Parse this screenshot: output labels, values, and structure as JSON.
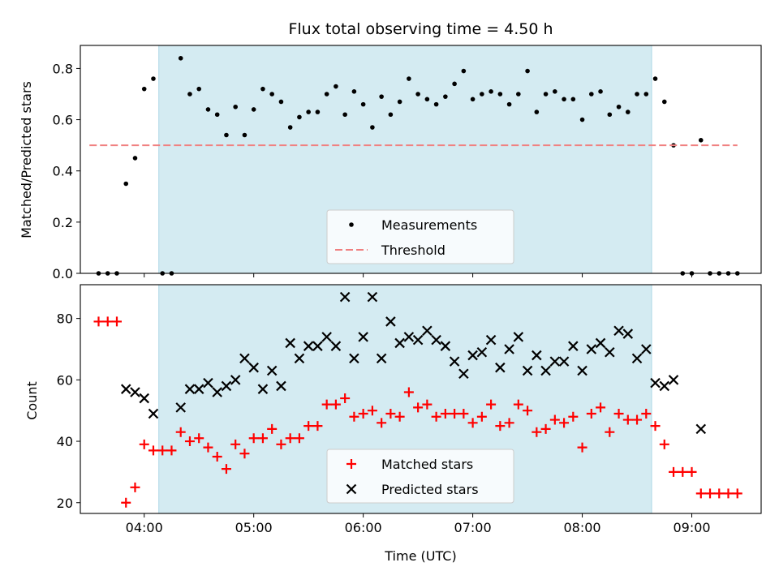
{
  "chart_data": {
    "title": "Flux total observing time = 4.50 h",
    "xlabel": "Time (UTC)",
    "x_ticks": [
      "04:00",
      "05:00",
      "06:00",
      "07:00",
      "08:00",
      "09:00"
    ],
    "x_range": [
      "03:25",
      "09:38"
    ],
    "shaded_interval": {
      "start": "04:08",
      "end": "08:38",
      "color": "#add8e6"
    },
    "panels": [
      {
        "type": "scatter",
        "ylabel": "Matched/Predicted stars",
        "ylim": [
          0,
          0.89
        ],
        "y_ticks": [
          "0.0",
          "0.2",
          "0.4",
          "0.6",
          "0.8"
        ],
        "y_tick_values": [
          0,
          0.2,
          0.4,
          0.6,
          0.8
        ],
        "legend": {
          "placement": "lower center"
        },
        "series": [
          {
            "name": "Measurements",
            "marker": "dot",
            "color": "#000000",
            "points": [
              [
                "03:35",
                0.0
              ],
              [
                "03:40",
                0.0
              ],
              [
                "03:45",
                0.0
              ],
              [
                "03:50",
                0.35
              ],
              [
                "03:55",
                0.45
              ],
              [
                "04:00",
                0.72
              ],
              [
                "04:05",
                0.76
              ],
              [
                "04:10",
                0.0
              ],
              [
                "04:15",
                0.0
              ],
              [
                "04:20",
                0.84
              ],
              [
                "04:25",
                0.7
              ],
              [
                "04:30",
                0.72
              ],
              [
                "04:35",
                0.64
              ],
              [
                "04:40",
                0.62
              ],
              [
                "04:45",
                0.54
              ],
              [
                "04:50",
                0.65
              ],
              [
                "04:55",
                0.54
              ],
              [
                "05:00",
                0.64
              ],
              [
                "05:05",
                0.72
              ],
              [
                "05:10",
                0.7
              ],
              [
                "05:15",
                0.67
              ],
              [
                "05:20",
                0.57
              ],
              [
                "05:25",
                0.61
              ],
              [
                "05:30",
                0.63
              ],
              [
                "05:35",
                0.63
              ],
              [
                "05:40",
                0.7
              ],
              [
                "05:45",
                0.73
              ],
              [
                "05:50",
                0.62
              ],
              [
                "05:55",
                0.71
              ],
              [
                "06:00",
                0.66
              ],
              [
                "06:05",
                0.57
              ],
              [
                "06:10",
                0.69
              ],
              [
                "06:15",
                0.62
              ],
              [
                "06:20",
                0.67
              ],
              [
                "06:25",
                0.76
              ],
              [
                "06:30",
                0.7
              ],
              [
                "06:35",
                0.68
              ],
              [
                "06:40",
                0.66
              ],
              [
                "06:45",
                0.69
              ],
              [
                "06:50",
                0.74
              ],
              [
                "06:55",
                0.79
              ],
              [
                "07:00",
                0.68
              ],
              [
                "07:05",
                0.7
              ],
              [
                "07:10",
                0.71
              ],
              [
                "07:15",
                0.7
              ],
              [
                "07:20",
                0.66
              ],
              [
                "07:25",
                0.7
              ],
              [
                "07:30",
                0.79
              ],
              [
                "07:35",
                0.63
              ],
              [
                "07:40",
                0.7
              ],
              [
                "07:45",
                0.71
              ],
              [
                "07:50",
                0.68
              ],
              [
                "07:55",
                0.68
              ],
              [
                "08:00",
                0.6
              ],
              [
                "08:05",
                0.7
              ],
              [
                "08:10",
                0.71
              ],
              [
                "08:15",
                0.62
              ],
              [
                "08:20",
                0.65
              ],
              [
                "08:25",
                0.63
              ],
              [
                "08:30",
                0.7
              ],
              [
                "08:35",
                0.7
              ],
              [
                "08:40",
                0.76
              ],
              [
                "08:45",
                0.67
              ],
              [
                "08:50",
                0.5
              ],
              [
                "08:55",
                0.0
              ],
              [
                "09:00",
                0.0
              ],
              [
                "09:05",
                0.52
              ],
              [
                "09:10",
                0.0
              ],
              [
                "09:15",
                0.0
              ],
              [
                "09:20",
                0.0
              ],
              [
                "09:25",
                0.0
              ]
            ]
          },
          {
            "name": "Threshold",
            "marker": "dashed-line",
            "color": "#f08080",
            "points": [
              [
                "03:30",
                0.5
              ],
              [
                "09:25",
                0.5
              ]
            ]
          }
        ]
      },
      {
        "type": "scatter",
        "ylabel": "Count",
        "ylim": [
          16.5,
          91
        ],
        "y_ticks": [
          "20",
          "40",
          "60",
          "80"
        ],
        "y_tick_values": [
          20,
          40,
          60,
          80
        ],
        "legend": {
          "placement": "lower center"
        },
        "series": [
          {
            "name": "Matched stars",
            "marker": "plus",
            "color": "#ff0000",
            "points": [
              [
                "03:35",
                79
              ],
              [
                "03:40",
                79
              ],
              [
                "03:45",
                79
              ],
              [
                "03:50",
                20
              ],
              [
                "03:55",
                25
              ],
              [
                "04:00",
                39
              ],
              [
                "04:05",
                37
              ],
              [
                "04:10",
                37
              ],
              [
                "04:15",
                37
              ],
              [
                "04:20",
                43
              ],
              [
                "04:25",
                40
              ],
              [
                "04:30",
                41
              ],
              [
                "04:35",
                38
              ],
              [
                "04:40",
                35
              ],
              [
                "04:45",
                31
              ],
              [
                "04:50",
                39
              ],
              [
                "04:55",
                36
              ],
              [
                "05:00",
                41
              ],
              [
                "05:05",
                41
              ],
              [
                "05:10",
                44
              ],
              [
                "05:15",
                39
              ],
              [
                "05:20",
                41
              ],
              [
                "05:25",
                41
              ],
              [
                "05:30",
                45
              ],
              [
                "05:35",
                45
              ],
              [
                "05:40",
                52
              ],
              [
                "05:45",
                52
              ],
              [
                "05:50",
                54
              ],
              [
                "05:55",
                48
              ],
              [
                "06:00",
                49
              ],
              [
                "06:05",
                50
              ],
              [
                "06:10",
                46
              ],
              [
                "06:15",
                49
              ],
              [
                "06:20",
                48
              ],
              [
                "06:25",
                56
              ],
              [
                "06:30",
                51
              ],
              [
                "06:35",
                52
              ],
              [
                "06:40",
                48
              ],
              [
                "06:45",
                49
              ],
              [
                "06:50",
                49
              ],
              [
                "06:55",
                49
              ],
              [
                "07:00",
                46
              ],
              [
                "07:05",
                48
              ],
              [
                "07:10",
                52
              ],
              [
                "07:15",
                45
              ],
              [
                "07:20",
                46
              ],
              [
                "07:25",
                52
              ],
              [
                "07:30",
                50
              ],
              [
                "07:35",
                43
              ],
              [
                "07:40",
                44
              ],
              [
                "07:45",
                47
              ],
              [
                "07:50",
                46
              ],
              [
                "07:55",
                48
              ],
              [
                "08:00",
                38
              ],
              [
                "08:05",
                49
              ],
              [
                "08:10",
                51
              ],
              [
                "08:15",
                43
              ],
              [
                "08:20",
                49
              ],
              [
                "08:25",
                47
              ],
              [
                "08:30",
                47
              ],
              [
                "08:35",
                49
              ],
              [
                "08:40",
                45
              ],
              [
                "08:45",
                39
              ],
              [
                "08:50",
                30
              ],
              [
                "08:55",
                30
              ],
              [
                "09:00",
                30
              ],
              [
                "09:05",
                23
              ],
              [
                "09:10",
                23
              ],
              [
                "09:15",
                23
              ],
              [
                "09:20",
                23
              ],
              [
                "09:25",
                23
              ]
            ]
          },
          {
            "name": "Predicted stars",
            "marker": "x",
            "color": "#000000",
            "points": [
              [
                "03:50",
                57
              ],
              [
                "03:55",
                56
              ],
              [
                "04:00",
                54
              ],
              [
                "04:05",
                49
              ],
              [
                "04:20",
                51
              ],
              [
                "04:25",
                57
              ],
              [
                "04:30",
                57
              ],
              [
                "04:35",
                59
              ],
              [
                "04:40",
                56
              ],
              [
                "04:45",
                58
              ],
              [
                "04:50",
                60
              ],
              [
                "04:55",
                67
              ],
              [
                "05:00",
                64
              ],
              [
                "05:05",
                57
              ],
              [
                "05:10",
                63
              ],
              [
                "05:15",
                58
              ],
              [
                "05:20",
                72
              ],
              [
                "05:25",
                67
              ],
              [
                "05:30",
                71
              ],
              [
                "05:35",
                71
              ],
              [
                "05:40",
                74
              ],
              [
                "05:45",
                71
              ],
              [
                "05:50",
                87
              ],
              [
                "05:55",
                67
              ],
              [
                "06:00",
                74
              ],
              [
                "06:05",
                87
              ],
              [
                "06:10",
                67
              ],
              [
                "06:15",
                79
              ],
              [
                "06:20",
                72
              ],
              [
                "06:25",
                74
              ],
              [
                "06:30",
                73
              ],
              [
                "06:35",
                76
              ],
              [
                "06:40",
                73
              ],
              [
                "06:45",
                71
              ],
              [
                "06:50",
                66
              ],
              [
                "06:55",
                62
              ],
              [
                "07:00",
                68
              ],
              [
                "07:05",
                69
              ],
              [
                "07:10",
                73
              ],
              [
                "07:15",
                64
              ],
              [
                "07:20",
                70
              ],
              [
                "07:25",
                74
              ],
              [
                "07:30",
                63
              ],
              [
                "07:35",
                68
              ],
              [
                "07:40",
                63
              ],
              [
                "07:45",
                66
              ],
              [
                "07:50",
                66
              ],
              [
                "07:55",
                71
              ],
              [
                "08:00",
                63
              ],
              [
                "08:05",
                70
              ],
              [
                "08:10",
                72
              ],
              [
                "08:15",
                69
              ],
              [
                "08:20",
                76
              ],
              [
                "08:25",
                75
              ],
              [
                "08:30",
                67
              ],
              [
                "08:35",
                70
              ],
              [
                "08:40",
                59
              ],
              [
                "08:45",
                58
              ],
              [
                "08:50",
                60
              ],
              [
                "09:05",
                44
              ]
            ]
          }
        ]
      }
    ]
  }
}
